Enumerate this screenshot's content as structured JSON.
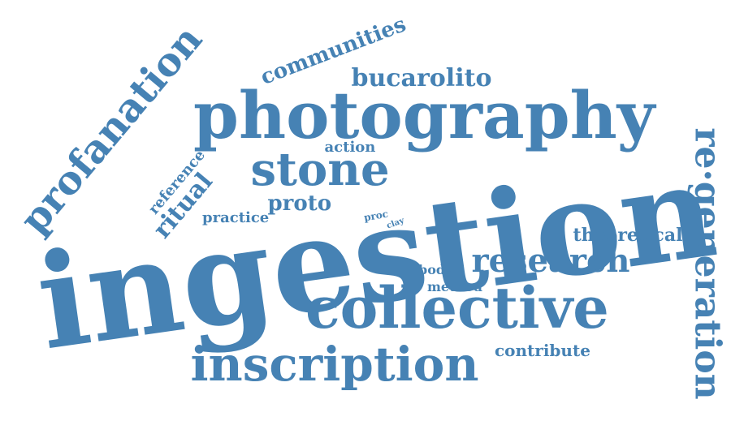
{
  "color": "#4682b4",
  "words": [
    {
      "id": "ingestion",
      "text": "ingestion"
    },
    {
      "id": "photography",
      "text": "photography"
    },
    {
      "id": "collective",
      "text": "collective"
    },
    {
      "id": "inscription",
      "text": "inscription"
    },
    {
      "id": "stone",
      "text": "stone"
    },
    {
      "id": "profanation",
      "text": "profanation"
    },
    {
      "id": "regeneration",
      "text": "re·generation"
    },
    {
      "id": "research",
      "text": "research"
    },
    {
      "id": "bucarolito",
      "text": "bucarolito"
    },
    {
      "id": "communities",
      "text": "communities"
    },
    {
      "id": "theoretical",
      "text": "theoretical"
    },
    {
      "id": "ritual",
      "text": "ritual"
    },
    {
      "id": "proto",
      "text": "proto"
    },
    {
      "id": "contribute",
      "text": "contribute"
    },
    {
      "id": "practice",
      "text": "practice"
    },
    {
      "id": "reference",
      "text": "reference"
    },
    {
      "id": "action",
      "text": "action"
    },
    {
      "id": "body",
      "text": "body"
    },
    {
      "id": "method",
      "text": "method"
    },
    {
      "id": "proc",
      "text": "proc"
    },
    {
      "id": "clay",
      "text": "clay"
    }
  ]
}
